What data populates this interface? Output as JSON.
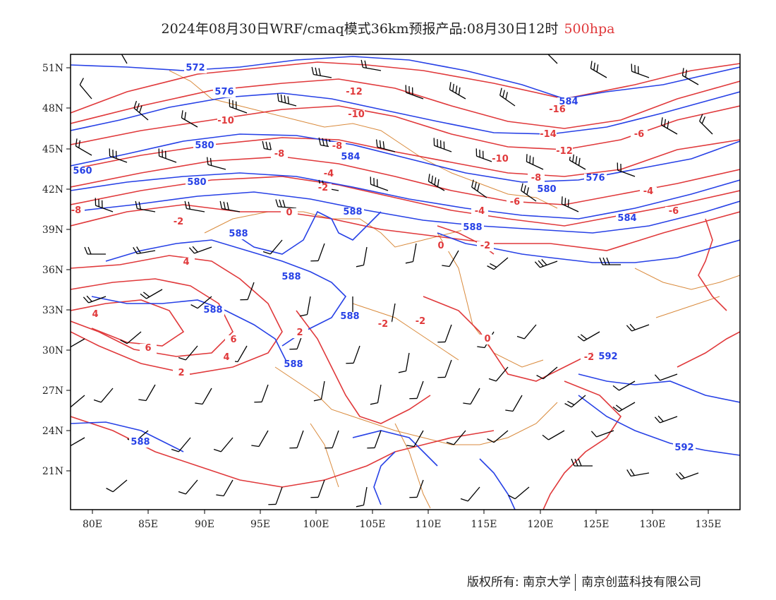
{
  "title": {
    "main": "2024年08月30日WRF/cmaq模式36km预报产品:08月30日12时",
    "level": "500hpa"
  },
  "colors": {
    "height": "#2741e6",
    "temperature": "#e0393b",
    "border": "#d98a3c",
    "wind": "#000000",
    "frame": "#000000"
  },
  "axes": {
    "lon_labels": [
      "80E",
      "85E",
      "90E",
      "95E",
      "100E",
      "105E",
      "110E",
      "115E",
      "120E",
      "125E",
      "130E",
      "135E"
    ],
    "lat_labels": [
      "51N",
      "48N",
      "45N",
      "42N",
      "39N",
      "36N",
      "33N",
      "30N",
      "27N",
      "24N",
      "21N"
    ]
  },
  "height_labels": [
    "572",
    "576",
    "580",
    "580",
    "584",
    "584",
    "588",
    "588",
    "588",
    "588",
    "588",
    "588",
    "588",
    "592",
    "592",
    "576",
    "584",
    "580",
    "588",
    "560"
  ],
  "temperature_labels": [
    "-12",
    "-10",
    "-10",
    "-8",
    "-8",
    "-6",
    "-6",
    "-4",
    "-4",
    "-2",
    "-2",
    "0",
    "0",
    "2",
    "2",
    "4",
    "4",
    "6",
    "6",
    "-16",
    "-14",
    "-12",
    "-10",
    "-8",
    "-6",
    "-4",
    "-2",
    "-2",
    "0",
    "-2",
    "-2",
    "4",
    "-8"
  ],
  "footer": {
    "left": "版权所有: 南京大学",
    "right": "南京创蓝科技有限公司"
  }
}
